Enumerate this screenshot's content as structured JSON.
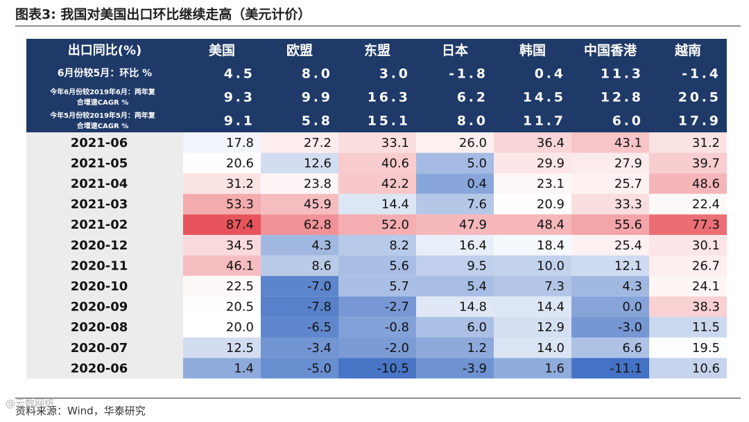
{
  "title": "图表3:  我国对美国出口环比继续走高（美元计价）",
  "source": "资料来源：Wind，华泰研究",
  "watermark": "@云数网络",
  "chart_data": {
    "type": "table",
    "header_label": "出口同比(%)",
    "columns": [
      "美国",
      "欧盟",
      "东盟",
      "日本",
      "韩国",
      "中国香港",
      "越南"
    ],
    "summary_rows": [
      {
        "label": [
          "6月份较5月：环比 %"
        ],
        "values": [
          "4.5",
          "8.0",
          "3.0",
          "-1.8",
          "0.4",
          "11.3",
          "-1.4"
        ]
      },
      {
        "label": [
          "今年6月份较2019年6月：两年复",
          "合增速CAGR %"
        ],
        "values": [
          "9.3",
          "9.9",
          "16.3",
          "6.2",
          "14.5",
          "12.8",
          "20.5"
        ]
      },
      {
        "label": [
          "今年5月份较2019年5月：两年复",
          "合增速CAGR %"
        ],
        "values": [
          "9.1",
          "5.8",
          "15.1",
          "8.0",
          "11.7",
          "6.0",
          "17.9"
        ]
      }
    ],
    "rows": [
      {
        "period": "2021-06",
        "values": [
          17.8,
          27.2,
          33.1,
          26.0,
          36.4,
          43.1,
          31.2
        ]
      },
      {
        "period": "2021-05",
        "values": [
          20.6,
          12.6,
          40.6,
          5.0,
          29.9,
          27.9,
          39.7
        ]
      },
      {
        "period": "2021-04",
        "values": [
          31.2,
          23.8,
          42.2,
          0.4,
          23.1,
          25.7,
          48.6
        ]
      },
      {
        "period": "2021-03",
        "values": [
          53.3,
          45.9,
          14.4,
          7.6,
          20.9,
          33.3,
          22.4
        ]
      },
      {
        "period": "2021-02",
        "values": [
          87.4,
          62.8,
          52.0,
          47.9,
          48.4,
          55.6,
          77.3
        ]
      },
      {
        "period": "2020-12",
        "values": [
          34.5,
          4.3,
          8.2,
          16.4,
          18.4,
          25.4,
          30.1
        ]
      },
      {
        "period": "2020-11",
        "values": [
          46.1,
          8.6,
          5.6,
          9.5,
          10.0,
          12.1,
          26.7
        ]
      },
      {
        "period": "2020-10",
        "values": [
          22.5,
          -7.0,
          5.7,
          5.4,
          7.3,
          4.3,
          24.1
        ]
      },
      {
        "period": "2020-09",
        "values": [
          20.5,
          -7.8,
          -2.7,
          14.8,
          14.4,
          0.0,
          38.3
        ]
      },
      {
        "period": "2020-08",
        "values": [
          20.0,
          -6.5,
          -0.8,
          6.0,
          12.9,
          -3.0,
          11.5
        ]
      },
      {
        "period": "2020-07",
        "values": [
          12.5,
          -3.4,
          -2.0,
          1.2,
          14.0,
          6.6,
          19.5
        ]
      },
      {
        "period": "2020-06",
        "values": [
          1.4,
          -5.0,
          -10.5,
          -3.9,
          1.6,
          -11.1,
          10.6
        ]
      }
    ],
    "colors": {
      "header_bg": "#1f3a68",
      "header_text": "#ffffff",
      "row_label_bg": "#ececec",
      "high": "#e8545c",
      "low": "#4472c4",
      "mid": "#ffffff"
    }
  }
}
